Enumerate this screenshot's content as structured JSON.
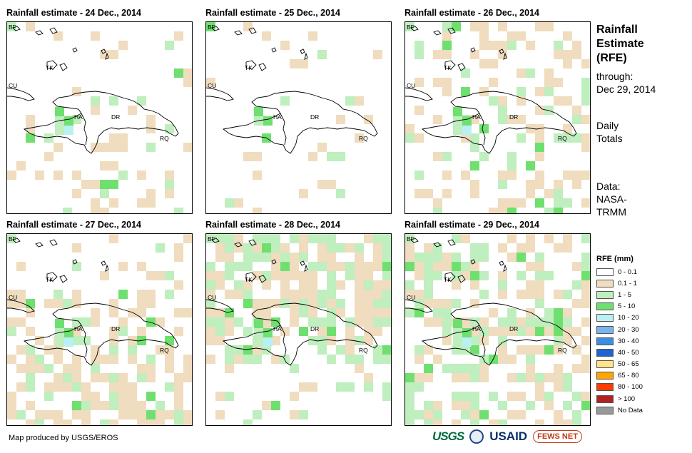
{
  "panels": [
    {
      "title": "Rainfall estimate - 24 Dec., 2014"
    },
    {
      "title": "Rainfall estimate - 25 Dec., 2014"
    },
    {
      "title": "Rainfall estimate - 26 Dec., 2014"
    },
    {
      "title": "Rainfall estimate - 27 Dec., 2014"
    },
    {
      "title": "Rainfall estimate - 28 Dec., 2014"
    },
    {
      "title": "Rainfall estimate - 29 Dec., 2014"
    }
  ],
  "map_labels": {
    "bf": "BF",
    "cu": "CU",
    "tk": "TK",
    "ha": "HA",
    "dr": "DR",
    "rq": "RQ"
  },
  "side": {
    "title_line1": "Rainfall",
    "title_line2": "Estimate",
    "title_line3": "(RFE)",
    "through_label": "through:",
    "through_date": "Dec 29, 2014",
    "daily_line1": "Daily",
    "daily_line2": "Totals",
    "data_line1": "Data:",
    "data_line2": "NASA-",
    "data_line3": "TRMM"
  },
  "legend": {
    "title": "RFE (mm)",
    "items": [
      {
        "label": "0 - 0.1",
        "color": "#ffffff"
      },
      {
        "label": "0.1 - 1",
        "color": "#f0dcbe"
      },
      {
        "label": "1 - 5",
        "color": "#bfeebf"
      },
      {
        "label": "5 - 10",
        "color": "#6fe06f"
      },
      {
        "label": "10 - 20",
        "color": "#b9f0f4"
      },
      {
        "label": "20 - 30",
        "color": "#78b4ee"
      },
      {
        "label": "30 - 40",
        "color": "#3c8ee2"
      },
      {
        "label": "40 - 50",
        "color": "#1e64d2"
      },
      {
        "label": "50 - 65",
        "color": "#ffe58a"
      },
      {
        "label": "65 - 80",
        "color": "#ffa500"
      },
      {
        "label": "80 - 100",
        "color": "#ff3c00"
      },
      {
        "label": "> 100",
        "color": "#b22222"
      },
      {
        "label": "No Data",
        "color": "#999999"
      }
    ]
  },
  "footer": {
    "credit": "Map produced by USGS/EROS"
  },
  "logos": {
    "usgs": "USGS",
    "usaid": "USAID",
    "fews": "FEWS NET"
  }
}
